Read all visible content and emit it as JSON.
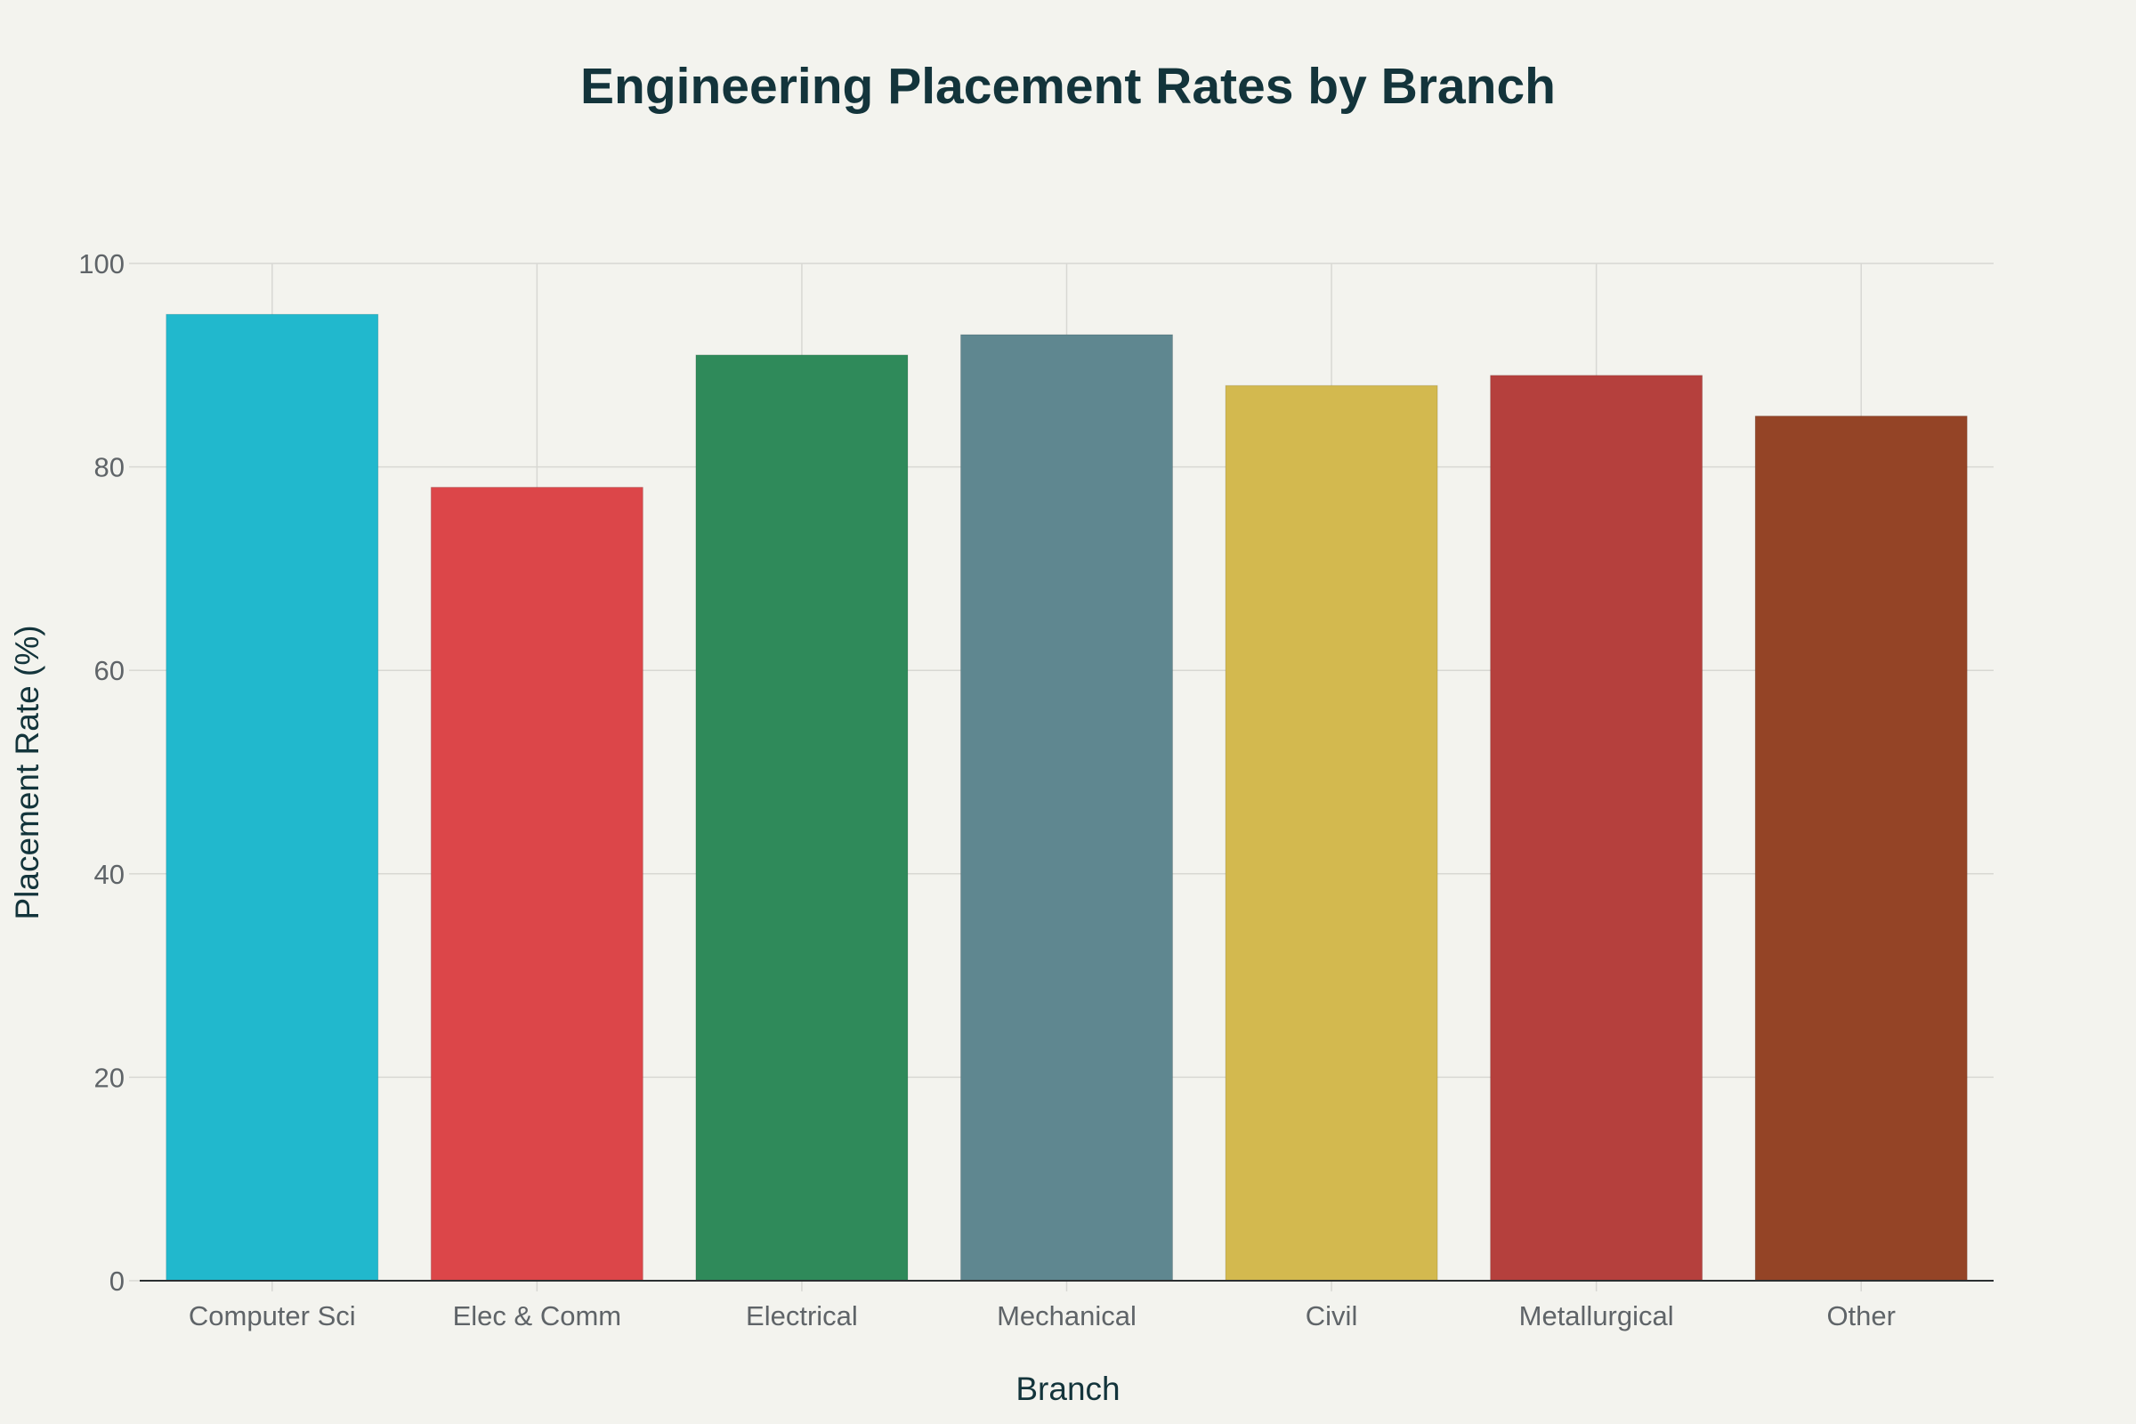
{
  "chart_data": {
    "type": "bar",
    "title": "Engineering Placement Rates by Branch",
    "xlabel": "Branch",
    "ylabel": "Placement Rate (%)",
    "categories": [
      "Computer Sci",
      "Elec & Comm",
      "Electrical",
      "Mechanical",
      "Civil",
      "Metallurgical",
      "Other"
    ],
    "values": [
      95,
      78,
      91,
      93,
      88,
      89,
      85
    ],
    "colors": [
      "#21B8CD",
      "#DC4649",
      "#2F8A5A",
      "#5F8790",
      "#D3B94F",
      "#B5403D",
      "#944426"
    ],
    "ylim": [
      0,
      100
    ],
    "yticks": [
      0,
      20,
      40,
      60,
      80,
      100
    ],
    "grid": true,
    "background": "#F3F3EE"
  }
}
